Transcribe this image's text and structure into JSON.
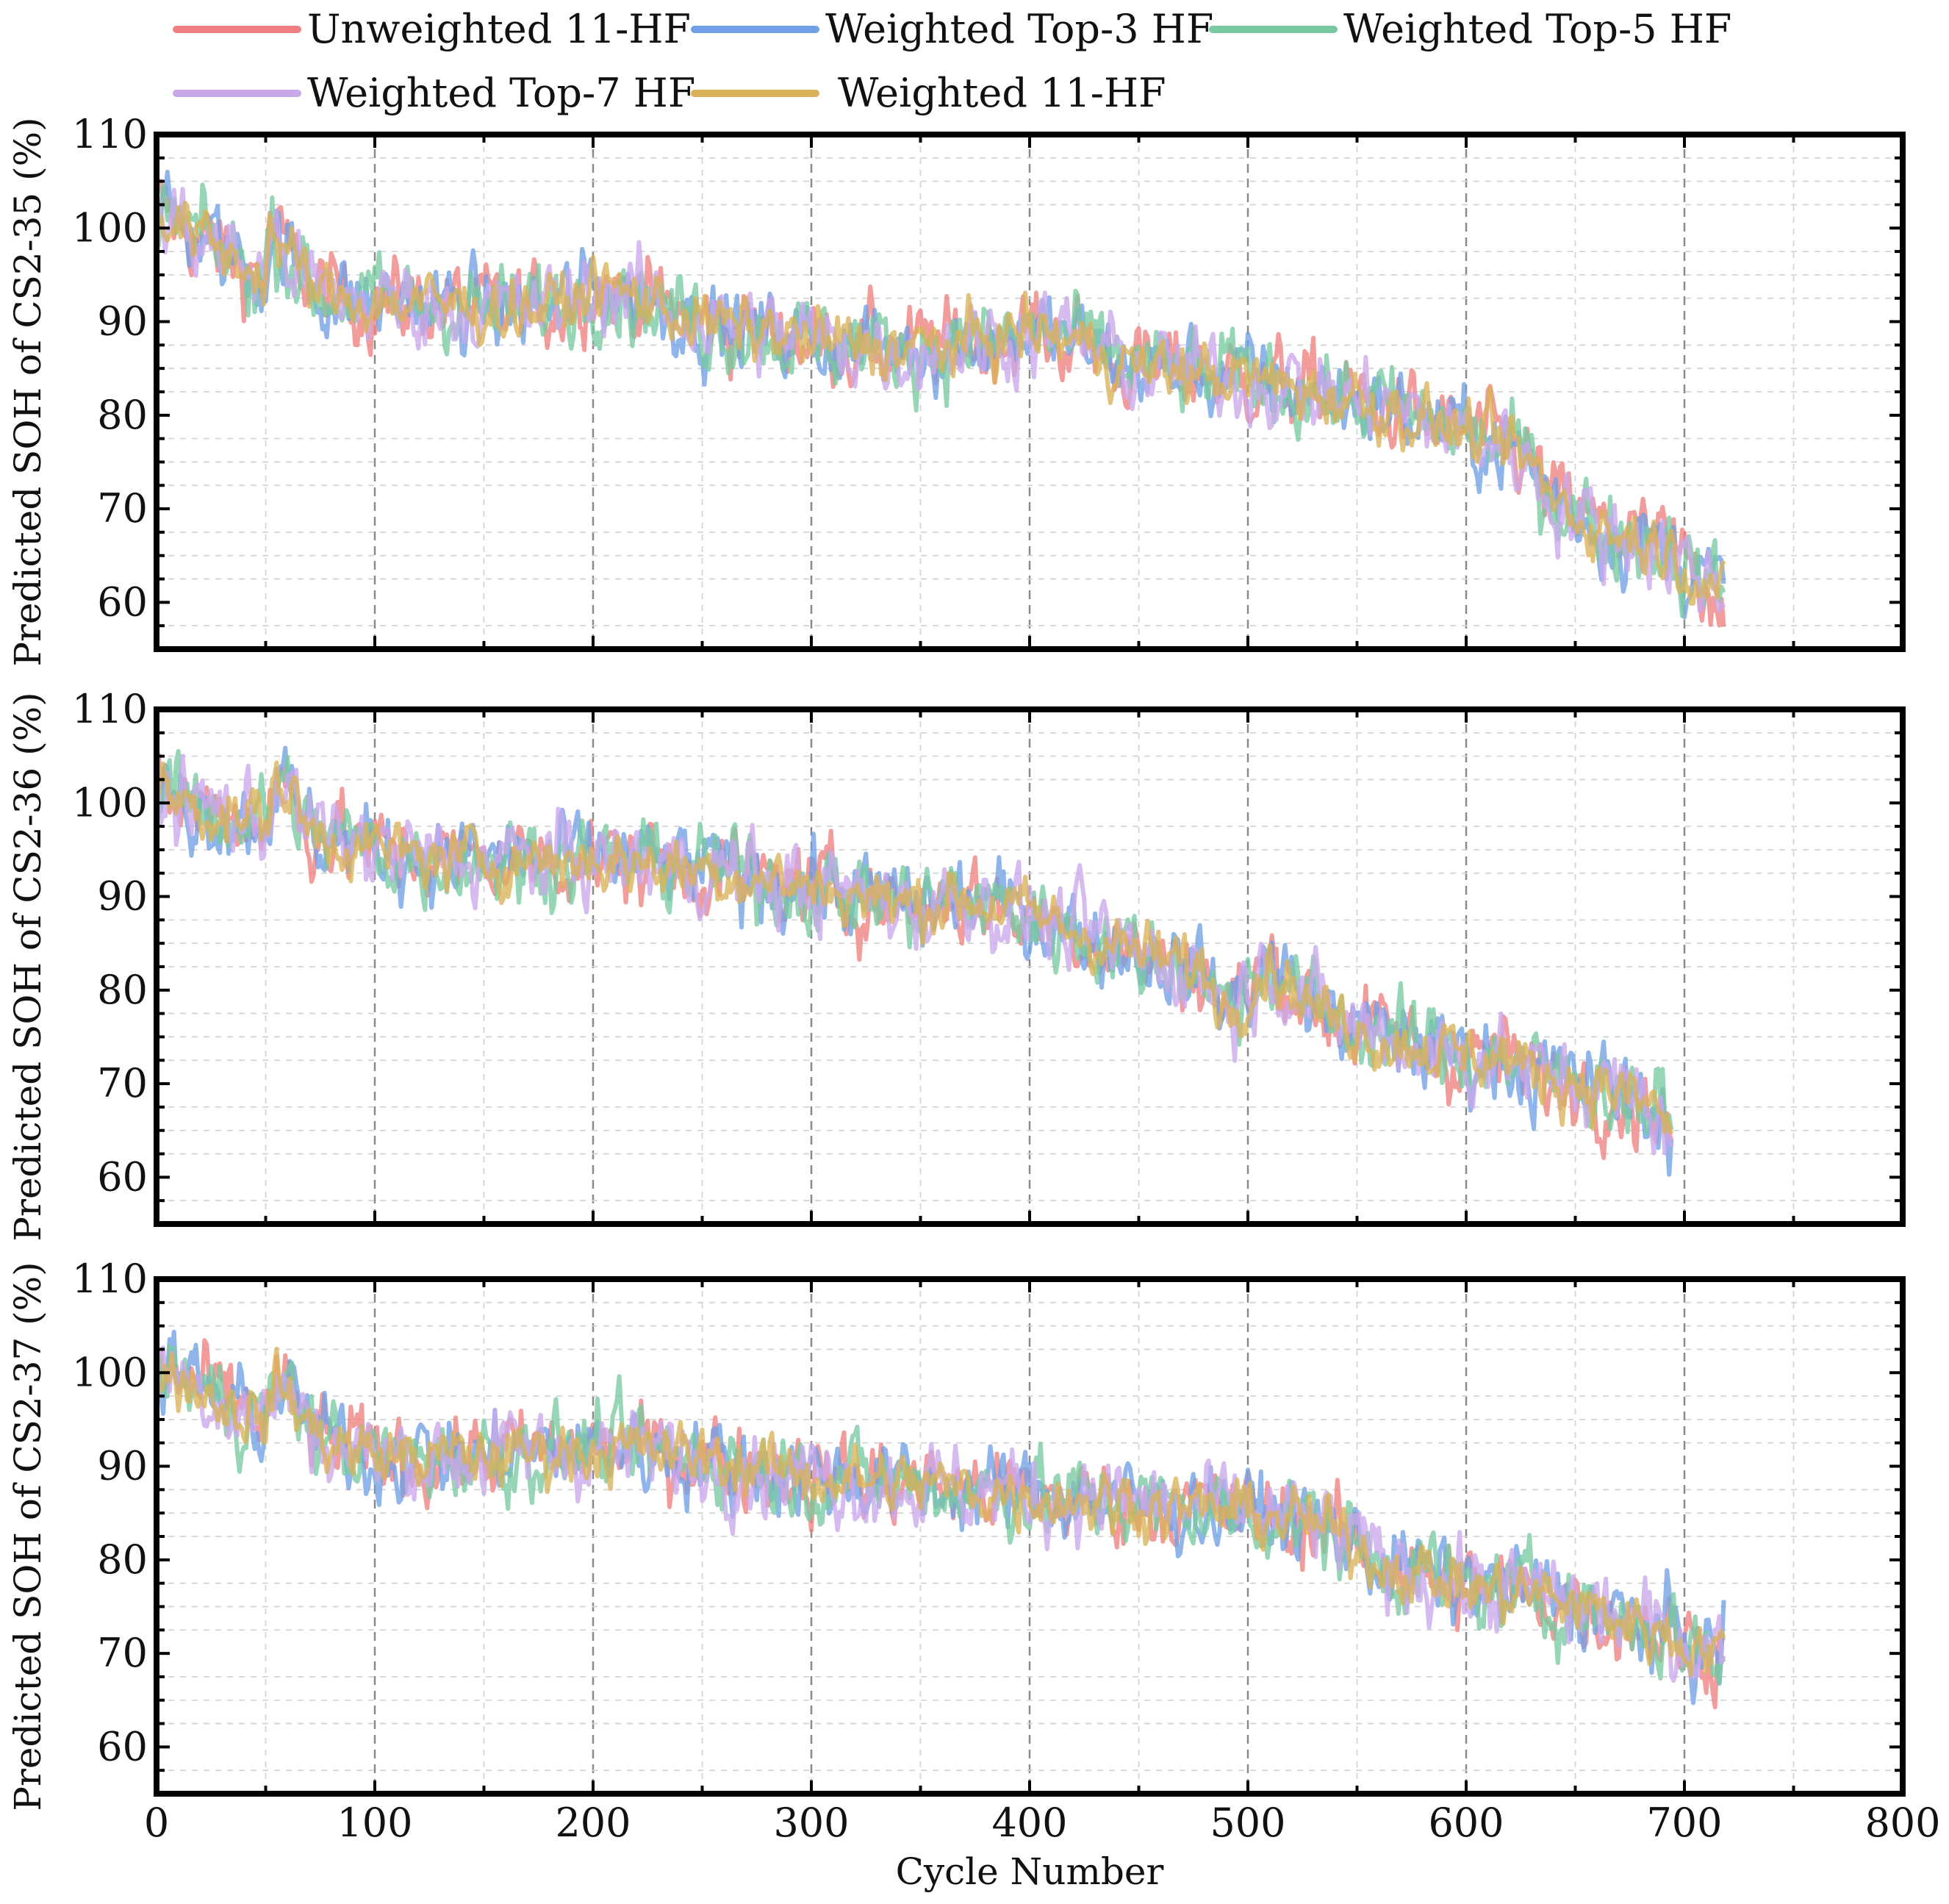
{
  "legend": {
    "items": [
      {
        "label": "Unweighted 11-HF",
        "color": "#f08080"
      },
      {
        "label": "Weighted Top-3 HF",
        "color": "#6fa0e6"
      },
      {
        "label": "Weighted Top-5 HF",
        "color": "#79c9a0"
      },
      {
        "label": "Weighted Top-7 HF",
        "color": "#c9a8ea"
      },
      {
        "label": "Weighted 11-HF",
        "color": "#d8b25a"
      }
    ]
  },
  "chart_data": [
    {
      "type": "line",
      "panel": "top",
      "ylabel": "Predicted SOH of CS2-35 (%)",
      "xlabel": "",
      "xlim": [
        0,
        800
      ],
      "ylim": [
        55,
        110
      ],
      "yticks": [
        60,
        70,
        80,
        90,
        100,
        110
      ],
      "xticks": [],
      "grid": true,
      "last_cycle": 718,
      "trend": [
        [
          0,
          102
        ],
        [
          20,
          99
        ],
        [
          40,
          96
        ],
        [
          50,
          95
        ],
        [
          52,
          100
        ],
        [
          60,
          97
        ],
        [
          75,
          93
        ],
        [
          100,
          92
        ],
        [
          130,
          92
        ],
        [
          160,
          91
        ],
        [
          190,
          92
        ],
        [
          200,
          94
        ],
        [
          215,
          93
        ],
        [
          250,
          90
        ],
        [
          300,
          88
        ],
        [
          340,
          87
        ],
        [
          380,
          88
        ],
        [
          400,
          89
        ],
        [
          420,
          88
        ],
        [
          450,
          85
        ],
        [
          500,
          84
        ],
        [
          540,
          82
        ],
        [
          560,
          81
        ],
        [
          600,
          78
        ],
        [
          625,
          76
        ],
        [
          640,
          71
        ],
        [
          660,
          68
        ],
        [
          690,
          66
        ],
        [
          718,
          61
        ]
      ],
      "series": [
        {
          "name": "Unweighted 11-HF"
        },
        {
          "name": "Weighted Top-3 HF"
        },
        {
          "name": "Weighted Top-5 HF"
        },
        {
          "name": "Weighted Top-7 HF"
        },
        {
          "name": "Weighted 11-HF"
        }
      ]
    },
    {
      "type": "line",
      "panel": "middle",
      "ylabel": "Predicted SOH of CS2-36 (%)",
      "xlabel": "",
      "xlim": [
        0,
        800
      ],
      "ylim": [
        55,
        110
      ],
      "yticks": [
        60,
        70,
        80,
        90,
        100,
        110
      ],
      "xticks": [],
      "grid": true,
      "last_cycle": 694,
      "trend": [
        [
          0,
          101
        ],
        [
          30,
          99
        ],
        [
          50,
          98
        ],
        [
          55,
          103
        ],
        [
          70,
          97
        ],
        [
          100,
          95
        ],
        [
          130,
          94
        ],
        [
          170,
          94
        ],
        [
          200,
          94
        ],
        [
          250,
          93
        ],
        [
          300,
          91
        ],
        [
          350,
          89
        ],
        [
          370,
          90
        ],
        [
          400,
          88
        ],
        [
          450,
          84
        ],
        [
          480,
          82
        ],
        [
          490,
          78
        ],
        [
          510,
          83
        ],
        [
          530,
          78
        ],
        [
          560,
          75
        ],
        [
          600,
          73
        ],
        [
          620,
          73
        ],
        [
          630,
          71
        ],
        [
          660,
          70
        ],
        [
          690,
          67
        ],
        [
          694,
          64
        ]
      ],
      "series": [
        {
          "name": "Unweighted 11-HF"
        },
        {
          "name": "Weighted Top-3 HF"
        },
        {
          "name": "Weighted Top-5 HF"
        },
        {
          "name": "Weighted Top-7 HF"
        },
        {
          "name": "Weighted 11-HF"
        }
      ]
    },
    {
      "type": "line",
      "panel": "bottom",
      "ylabel": "Predicted SOH of CS2-37 (%)",
      "xlabel": "Cycle Number",
      "xlim": [
        0,
        800
      ],
      "ylim": [
        55,
        110
      ],
      "yticks": [
        60,
        70,
        80,
        90,
        100,
        110
      ],
      "xticks": [
        0,
        100,
        200,
        300,
        400,
        500,
        600,
        700,
        800
      ],
      "grid": true,
      "last_cycle": 718,
      "trend": [
        [
          0,
          101
        ],
        [
          30,
          97
        ],
        [
          50,
          95
        ],
        [
          55,
          99
        ],
        [
          75,
          93
        ],
        [
          100,
          91
        ],
        [
          150,
          91
        ],
        [
          200,
          92
        ],
        [
          250,
          91
        ],
        [
          300,
          89
        ],
        [
          350,
          88
        ],
        [
          400,
          87
        ],
        [
          450,
          86
        ],
        [
          500,
          85
        ],
        [
          530,
          84
        ],
        [
          560,
          80
        ],
        [
          600,
          77
        ],
        [
          640,
          76
        ],
        [
          680,
          73
        ],
        [
          718,
          70
        ]
      ],
      "series": [
        {
          "name": "Unweighted 11-HF"
        },
        {
          "name": "Weighted Top-3 HF"
        },
        {
          "name": "Weighted Top-5 HF"
        },
        {
          "name": "Weighted Top-7 HF"
        },
        {
          "name": "Weighted 11-HF"
        }
      ]
    }
  ]
}
